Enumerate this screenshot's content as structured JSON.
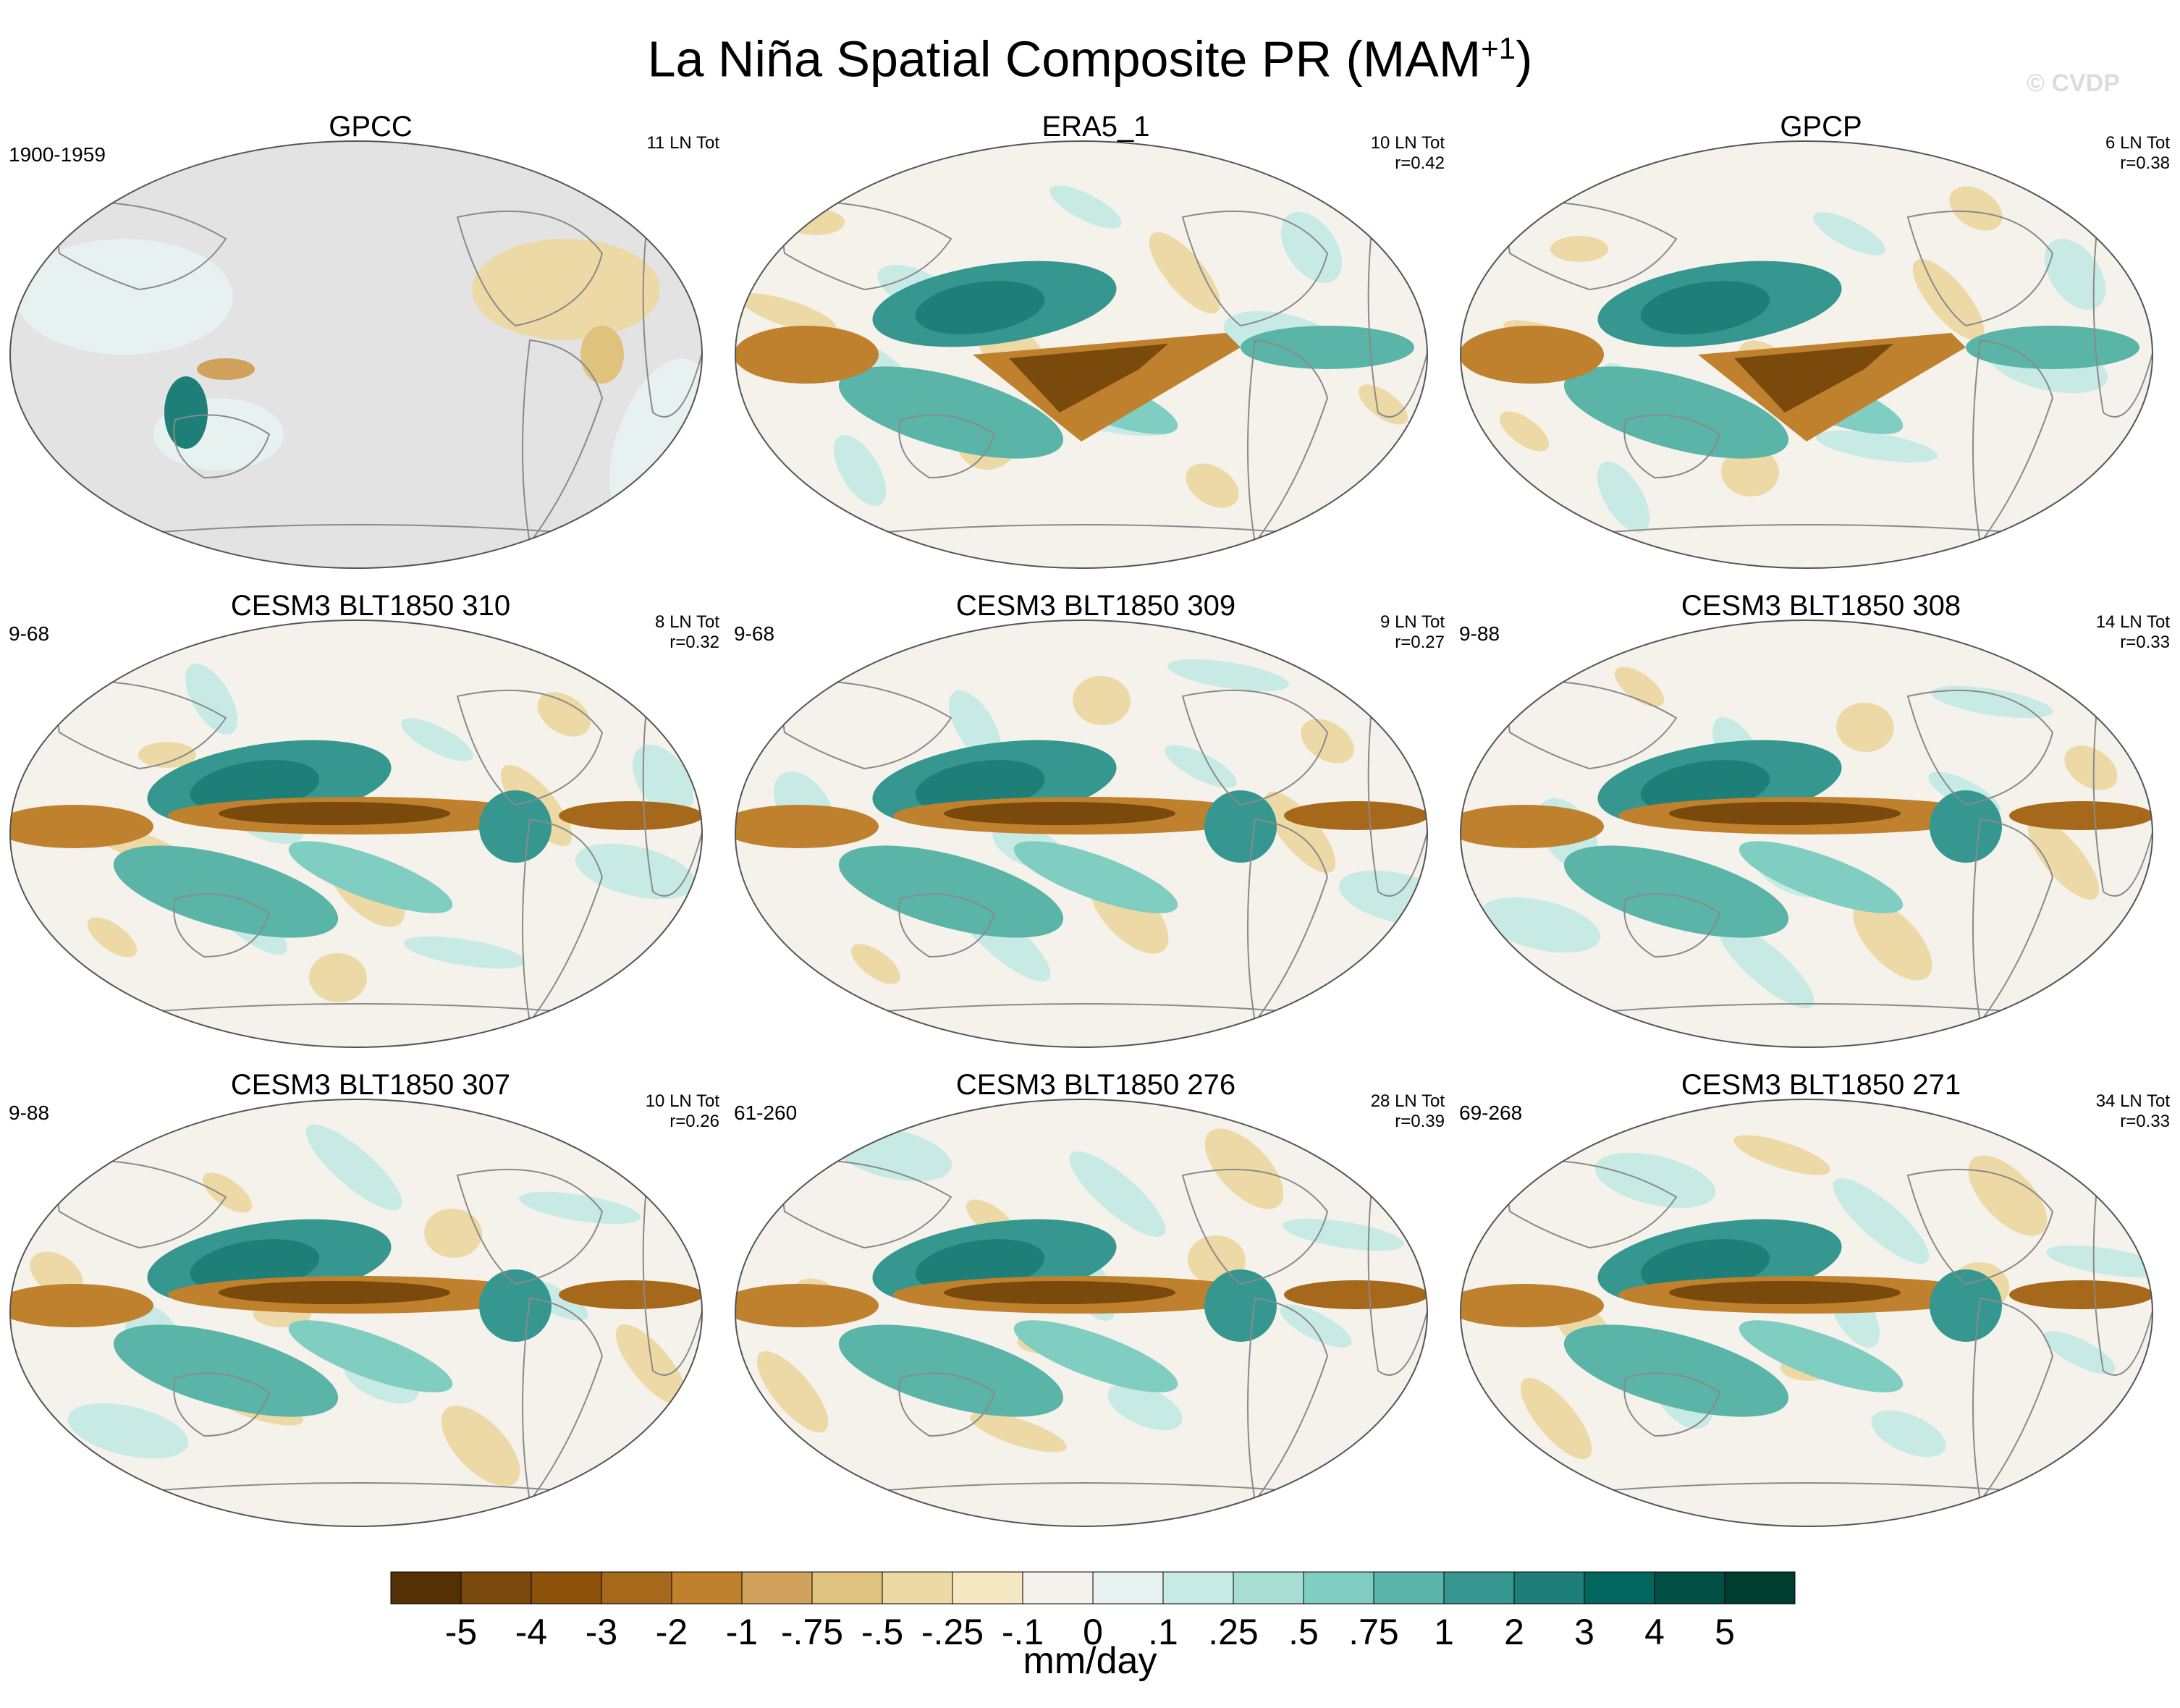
{
  "title": {
    "main": "La Niña Spatial Composite PR (MAM",
    "sup": "+1",
    "close": ")"
  },
  "credit": "© CVDP",
  "panels": [
    {
      "title": "GPCC",
      "left_label": "1900-1959",
      "right_line1": "11 LN Tot",
      "right_line2": ""
    },
    {
      "title": "ERA5_1",
      "left_label": "",
      "right_line1": "10 LN Tot",
      "right_line2": "r=0.42"
    },
    {
      "title": "GPCP",
      "left_label": "",
      "right_line1": "6 LN Tot",
      "right_line2": "r=0.38"
    },
    {
      "title": "CESM3 BLT1850 310",
      "left_label": "9-68",
      "right_line1": "8 LN Tot",
      "right_line2": "r=0.32"
    },
    {
      "title": "CESM3 BLT1850 309",
      "left_label": "9-68",
      "right_line1": "9 LN Tot",
      "right_line2": "r=0.27"
    },
    {
      "title": "CESM3 BLT1850 308",
      "left_label": "9-88",
      "right_line1": "14 LN Tot",
      "right_line2": "r=0.33"
    },
    {
      "title": "CESM3 BLT1850 307",
      "left_label": "9-88",
      "right_line1": "10 LN Tot",
      "right_line2": "r=0.26"
    },
    {
      "title": "CESM3 BLT1850 276",
      "left_label": "61-260",
      "right_line1": "28 LN Tot",
      "right_line2": "r=0.39"
    },
    {
      "title": "CESM3 BLT1850 271",
      "left_label": "69-268",
      "right_line1": "34 LN Tot",
      "right_line2": "r=0.33"
    }
  ],
  "chart_data": {
    "type": "heatmap",
    "projection": "Robinson (Pacific-centered)",
    "variable": "Precipitation composite anomaly, La Niña, MAM+1",
    "colorbar": {
      "labels": [
        "-5",
        "-4",
        "-3",
        "-2",
        "-1",
        "-.75",
        "-.5",
        "-.25",
        "-.1",
        "0",
        ".1",
        ".25",
        ".5",
        ".75",
        "1",
        "2",
        "3",
        "4",
        "5"
      ],
      "levels": [
        -5,
        -4,
        -3,
        -2,
        -1,
        -0.75,
        -0.5,
        -0.25,
        -0.1,
        0,
        0.1,
        0.25,
        0.5,
        0.75,
        1,
        2,
        3,
        4,
        5
      ],
      "colors": [
        "#543005",
        "#7a4a0c",
        "#8c5109",
        "#a6681a",
        "#bf812d",
        "#d0a25c",
        "#dfc27d",
        "#ecd9a6",
        "#f6e8c3",
        "#f5f2eb",
        "#e7f1f0",
        "#c7eae5",
        "#a8ddd4",
        "#80cdc1",
        "#5ab4a8",
        "#35978f",
        "#1d7f77",
        "#01665e",
        "#024f46",
        "#003c30"
      ],
      "unit": "mm/day"
    },
    "panels": [
      {
        "name": "GPCC",
        "pattern": "land-only, ocean masked"
      },
      {
        "name": "ERA5_1",
        "pattern": "dry central-east Pacific wedge, wet west Pacific"
      },
      {
        "name": "GPCP",
        "pattern": "dry central Pacific, wet west Pacific"
      },
      {
        "name": "CESM3 BLT1850 310",
        "pattern": "dry equatorial Pacific band"
      },
      {
        "name": "CESM3 BLT1850 309",
        "pattern": "dry equatorial Pacific band"
      },
      {
        "name": "CESM3 BLT1850 308",
        "pattern": "dry equatorial Pacific band"
      },
      {
        "name": "CESM3 BLT1850 307",
        "pattern": "dry equatorial Pacific band"
      },
      {
        "name": "CESM3 BLT1850 276",
        "pattern": "dry equatorial Pacific band"
      },
      {
        "name": "CESM3 BLT1850 271",
        "pattern": "dry equatorial Pacific band"
      }
    ]
  }
}
